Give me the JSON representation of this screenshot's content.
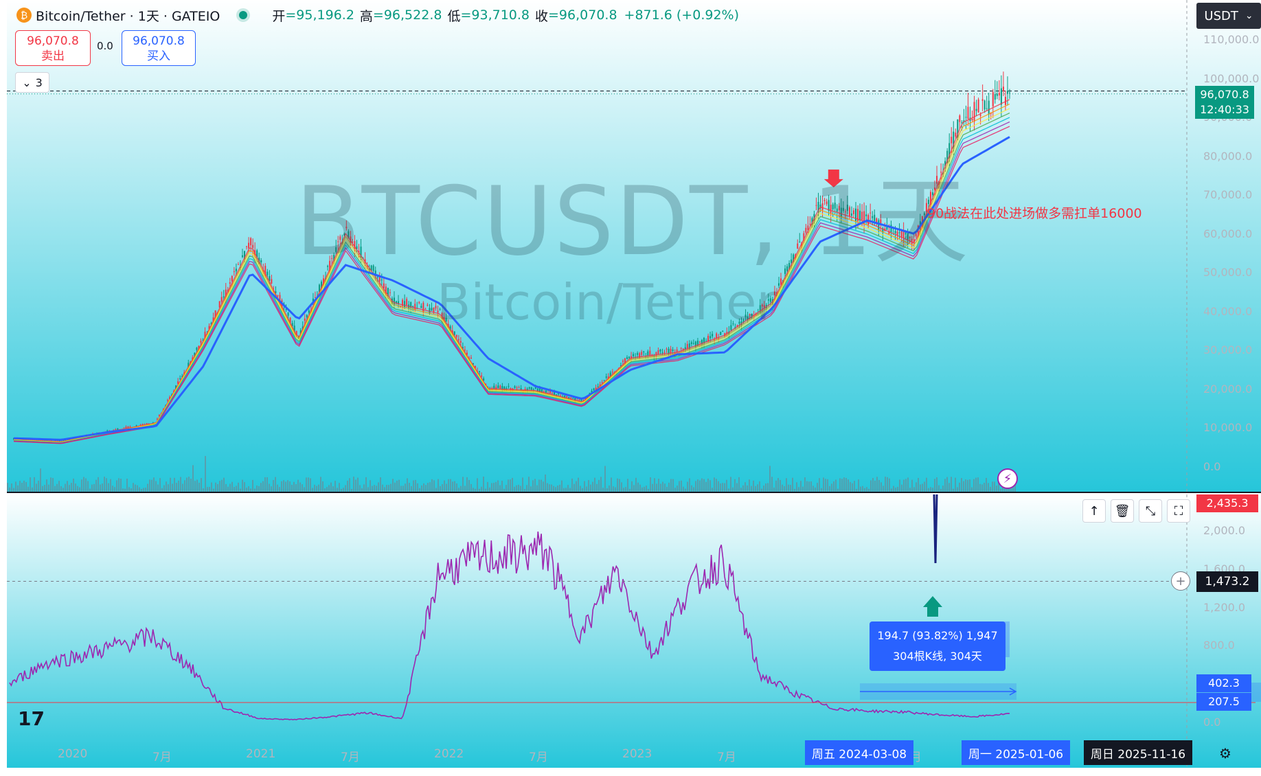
{
  "header": {
    "symbol": "Bitcoin/Tether · 1天 · GATEIO",
    "open_label": "开",
    "open": "=95,196.2",
    "high_label": "高",
    "high": "=96,522.8",
    "low_label": "低",
    "low": "=93,710.8",
    "close_label": "收",
    "close": "=96,070.8",
    "change": "+871.6 (+0.92%)"
  },
  "trade": {
    "sell_price": "96,070.8",
    "sell_label": "卖出",
    "spread": "0.0",
    "buy_price": "96,070.8",
    "buy_label": "买入"
  },
  "indicator_toggle": {
    "count": "3"
  },
  "currency": "USDT",
  "watermark": {
    "main": "BTCUSDT, 1天",
    "sub": "Bitcoin/Tether"
  },
  "annotation": "90战法在此处进场做多需扛单16000",
  "price_tag": {
    "price": "96,070.8",
    "countdown": "12:40:33"
  },
  "price_axis": [
    "110,000.0",
    "100,000.0",
    "90,000.0",
    "80,000.0",
    "70,000.0",
    "60,000.0",
    "50,000.0",
    "40,000.0",
    "30,000.0",
    "20,000.0",
    "10,000.0",
    "0.0"
  ],
  "lower_axis": [
    "2,000.0",
    "1,600.0",
    "1,200.0",
    "800.0",
    "400.0",
    "0.0"
  ],
  "lower_tags": {
    "max": "2,435.3",
    "crosshair": "1,473.2",
    "a": "402.3",
    "b": "207.5"
  },
  "measure": {
    "line1": "194.7 (93.82%) 1,947",
    "line2": "304根K线, 304天"
  },
  "time_axis": [
    "2020",
    "7月",
    "2021",
    "7月",
    "2022",
    "7月",
    "2023",
    "7月",
    "7月"
  ],
  "date_tags": {
    "start": "周五 2024-03-08",
    "end": "周一 2025-01-06",
    "cursor": "周日 2025-11-16"
  },
  "colors": {
    "up": "#089981",
    "down": "#f23645",
    "ma_main": "#2962ff",
    "indicator": "#9c27b0",
    "accent": "#2962ff"
  },
  "chart_data": {
    "type": "line",
    "title": "BTCUSDT, 1天",
    "xlabel": "",
    "ylabel": "",
    "ylim": [
      0,
      110000
    ],
    "x": [
      "2020-01",
      "2020-04",
      "2020-07",
      "2020-10",
      "2021-01",
      "2021-04",
      "2021-07",
      "2021-10",
      "2022-01",
      "2022-04",
      "2022-07",
      "2022-10",
      "2023-01",
      "2023-04",
      "2023-07",
      "2023-10",
      "2024-01",
      "2024-03",
      "2024-06",
      "2024-09",
      "2024-11",
      "2025-01"
    ],
    "series": [
      {
        "values": [
          7200,
          6600,
          9200,
          11500,
          33000,
          58000,
          33500,
          61000,
          43000,
          40000,
          20500,
          20000,
          17000,
          28500,
          30000,
          34500,
          43000,
          68000,
          64000,
          58500,
          90000,
          96070
        ]
      },
      {
        "values": [
          7400,
          7000,
          9000,
          10500,
          26000,
          50000,
          38000,
          52000,
          48000,
          42000,
          28000,
          20800,
          17500,
          25000,
          29000,
          29500,
          41000,
          58000,
          63500,
          60000,
          78000,
          85000
        ]
      }
    ],
    "lower_series": {
      "ylim": [
        0,
        2435.3
      ],
      "values": [
        400,
        620,
        700,
        800,
        900,
        600,
        150,
        40,
        30,
        60,
        100,
        40,
        1550,
        1700,
        1750,
        1800,
        900,
        1600,
        700,
        1400,
        1700,
        500,
        300,
        150,
        120,
        110,
        80,
        60,
        90
      ]
    }
  }
}
